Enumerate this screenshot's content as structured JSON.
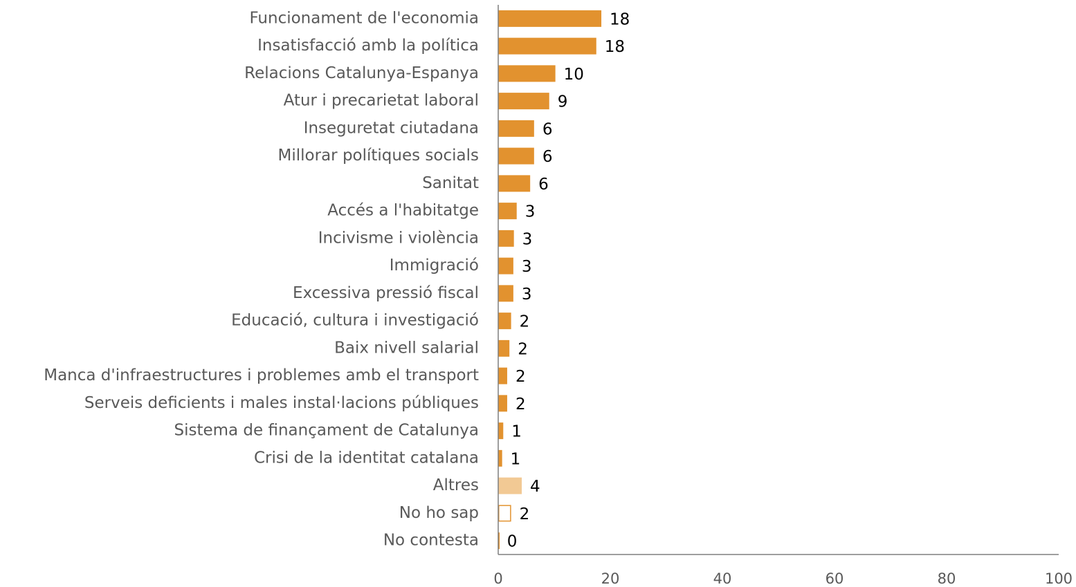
{
  "chart_data": {
    "type": "barh",
    "categories": [
      "Funcionament de l'economia",
      "Insatisfacció amb la política",
      "Relacions Catalunya-Espanya",
      "Atur i precarietat laboral",
      "Inseguretat ciutadana",
      "Millorar polítiques socials",
      "Sanitat",
      "Accés a l'habitatge",
      "Incivisme i violència",
      "Immigració",
      "Excessiva pressió fiscal",
      "Educació, cultura i investigació",
      "Baix nivell salarial",
      "Manca d'infraestructures i problemes amb el transport",
      "Serveis deficients i males instal·lacions públiques",
      "Sistema de finançament de Catalunya",
      "Crisi de la identitat catalana",
      "Altres",
      "No ho sap",
      "No contesta"
    ],
    "values": [
      18.4,
      17.5,
      10.2,
      9.1,
      6.4,
      6.4,
      5.7,
      3.3,
      2.8,
      2.7,
      2.7,
      2.3,
      2.0,
      1.6,
      1.6,
      0.9,
      0.7,
      4.2,
      2.3,
      0.1
    ],
    "value_labels": [
      "18",
      "18",
      "10",
      "9",
      "6",
      "6",
      "6",
      "3",
      "3",
      "3",
      "3",
      "2",
      "2",
      "2",
      "2",
      "1",
      "1",
      "4",
      "2",
      "0"
    ],
    "colors": [
      "#e2922f",
      "#e2922f",
      "#e2922f",
      "#e2922f",
      "#e2922f",
      "#e2922f",
      "#e2922f",
      "#e2922f",
      "#e2922f",
      "#e2922f",
      "#e2922f",
      "#e2922f",
      "#e2922f",
      "#e2922f",
      "#e2922f",
      "#e2922f",
      "#e2922f",
      "#f2c994",
      "#ffffff",
      "#e2922f"
    ],
    "edgecolors": [
      "#e2922f",
      "#e2922f",
      "#e2922f",
      "#e2922f",
      "#e2922f",
      "#e2922f",
      "#e2922f",
      "#e2922f",
      "#e2922f",
      "#e2922f",
      "#e2922f",
      "#e2922f",
      "#e2922f",
      "#e2922f",
      "#e2922f",
      "#e2922f",
      "#e2922f",
      "#f2c994",
      "#e2922f",
      "#e2922f"
    ],
    "xlim": [
      0,
      100
    ],
    "xticks": [
      0,
      20,
      40,
      60,
      80,
      100
    ],
    "grid": false
  }
}
